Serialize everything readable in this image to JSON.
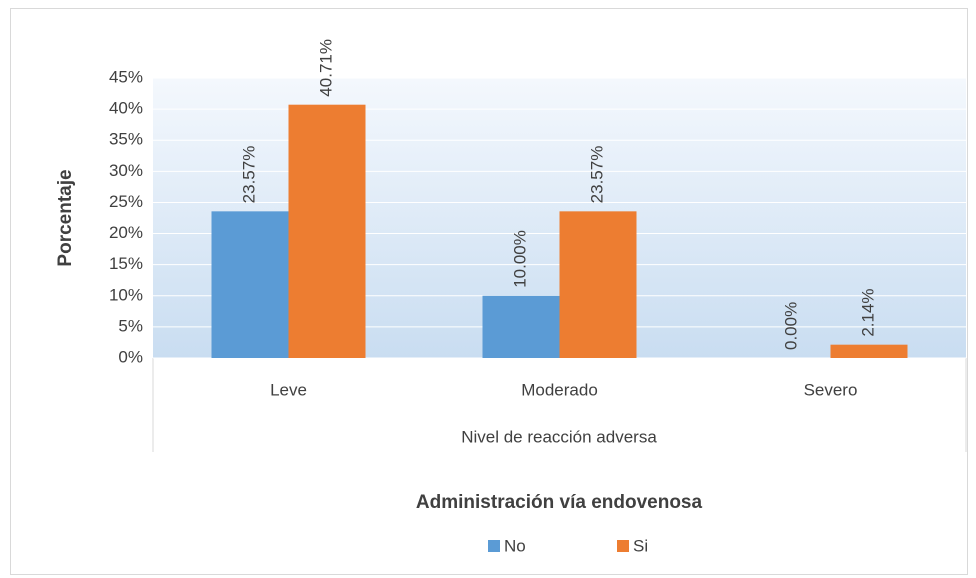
{
  "chart_data": {
    "type": "bar",
    "categories": [
      "Leve",
      "Moderado",
      "Severo"
    ],
    "series": [
      {
        "name": "No",
        "color": "#5b9bd5",
        "values": [
          23.57,
          10.0,
          0.0
        ],
        "value_labels": [
          "23.57%",
          "10.00%",
          "0.00%"
        ]
      },
      {
        "name": "Si",
        "color": "#ed7d31",
        "values": [
          40.71,
          23.57,
          2.14
        ],
        "value_labels": [
          "40.71%",
          "23.57%",
          "2.14%"
        ]
      }
    ],
    "ylabel": "Porcentaje",
    "xlabel": "Nivel de reacción adversa",
    "legend_title": "Administración vía endovenosa",
    "legend": "bottom",
    "ylim": [
      0,
      45
    ],
    "yticks": [
      {
        "value": 0,
        "label": "0%"
      },
      {
        "value": 5,
        "label": "5%"
      },
      {
        "value": 10,
        "label": "10%"
      },
      {
        "value": 15,
        "label": "15%"
      },
      {
        "value": 20,
        "label": "20%"
      },
      {
        "value": 25,
        "label": "25%"
      },
      {
        "value": 30,
        "label": "30%"
      },
      {
        "value": 35,
        "label": "35%"
      },
      {
        "value": 40,
        "label": "40%"
      },
      {
        "value": 45,
        "label": "45%"
      }
    ],
    "grid": true
  }
}
